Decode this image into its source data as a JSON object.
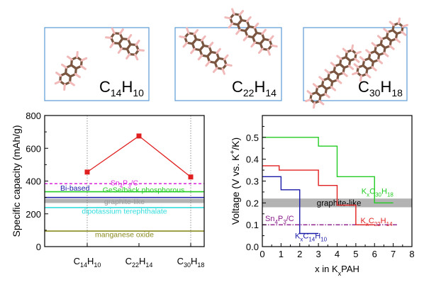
{
  "molecules": [
    {
      "label": "C",
      "sub1": "14",
      "mid": "H",
      "sub2": "10"
    },
    {
      "label": "C",
      "sub1": "22",
      "mid": "H",
      "sub2": "14"
    },
    {
      "label": "C",
      "sub1": "30",
      "mid": "H",
      "sub2": "18"
    }
  ],
  "colors": {
    "frame": "#5b9bd5",
    "bond": "#7a5540",
    "hydrogen": "#f2b9b9",
    "red": "#e02020",
    "green": "#22cc22",
    "blue": "#1a1aa8",
    "purple": "#8a1a8a",
    "band": "#b3b3b3"
  },
  "chart_data": [
    {
      "type": "line",
      "ylabel": "Specific capacity (mAh/g)",
      "ylim": [
        0,
        800
      ],
      "yticks": [
        "0",
        "200",
        "400",
        "600",
        "800"
      ],
      "categories": [
        {
          "main": "C",
          "sub1": "14",
          "mid": "H",
          "sub2": "10"
        },
        {
          "main": "C",
          "sub1": "22",
          "mid": "H",
          "sub2": "14"
        },
        {
          "main": "C",
          "sub1": "30",
          "mid": "H",
          "sub2": "18"
        }
      ],
      "series": [
        {
          "values": [
            455,
            675,
            425
          ],
          "color": "#e02020"
        }
      ],
      "reference_lines": [
        {
          "label": "Sn4P3/C",
          "parts": [
            [
              "Sn",
              ""
            ],
            [
              "4",
              "sub"
            ],
            [
              "P",
              ""
            ],
            [
              "3",
              "sub"
            ],
            [
              "/C",
              ""
            ]
          ],
          "value": 384,
          "color": "#dd33dd",
          "dash": "4,3",
          "label_y": 392,
          "label_x": 0.5
        },
        {
          "label": "GeSe/back phosphorous",
          "parts": [
            [
              "GeSe/back phosphorous",
              ""
            ]
          ],
          "value": 335,
          "color": "#22cc22",
          "dash": "",
          "label_y": 348,
          "label_x": 0.62
        },
        {
          "label": "Bi-based",
          "parts": [
            [
              "Bi-based",
              ""
            ]
          ],
          "value": 300,
          "color": "#1a1aa8",
          "dash": "",
          "label_y": 360,
          "label_x": 0.12
        },
        {
          "label": "graphite-like",
          "parts": [
            [
              "graphite-like",
              ""
            ]
          ],
          "value": 279,
          "color": "#808080",
          "dash": "",
          "label_y": 276,
          "label_x": 0.5
        },
        {
          "label": "dipotassium terephthalate",
          "parts": [
            [
              "dipotassium terephthalate",
              ""
            ]
          ],
          "value": 238,
          "color": "#33dddd",
          "dash": "",
          "label_y": 218,
          "label_x": 0.5
        },
        {
          "label": "manganese oxide",
          "parts": [
            [
              "manganese oxide",
              ""
            ]
          ],
          "value": 95,
          "color": "#8a8a20",
          "dash": "",
          "label_y": 76,
          "label_x": 0.5
        }
      ]
    },
    {
      "type": "line",
      "xlabel_parts": [
        [
          "x in K",
          ""
        ],
        [
          "x",
          "sub"
        ],
        [
          "PAH",
          ""
        ]
      ],
      "ylabel_parts": [
        [
          "Voltage (V vs. K",
          ""
        ],
        [
          "+",
          "sup"
        ],
        [
          "/K)",
          ""
        ]
      ],
      "xlim": [
        0,
        8
      ],
      "ylim": [
        0,
        0.6
      ],
      "xticks": [
        "0",
        "1",
        "2",
        "3",
        "4",
        "5",
        "6",
        "7",
        "8"
      ],
      "yticks": [
        "0.0",
        "0.1",
        "0.2",
        "0.3",
        "0.4",
        "0.5"
      ],
      "band": {
        "label": "graphite-like",
        "range": [
          0.18,
          0.22
        ],
        "color": "#b3b3b3"
      },
      "reference_line": {
        "label": "Sn4P3/C",
        "parts": [
          [
            "Sn",
            ""
          ],
          [
            "4",
            "sub"
          ],
          [
            "P",
            ""
          ],
          [
            "3",
            "sub"
          ],
          [
            "/C",
            ""
          ]
        ],
        "value": 0.1,
        "color": "#8a1a8a"
      },
      "series": [
        {
          "name": "KxC30H18",
          "parts": [
            [
              "K",
              ""
            ],
            [
              "x",
              "sub"
            ],
            [
              "C",
              ""
            ],
            [
              "30",
              "sub"
            ],
            [
              "H",
              ""
            ],
            [
              "18",
              "sub"
            ]
          ],
          "color": "#22cc22",
          "x": [
            0,
            3,
            3,
            4,
            4,
            6,
            6,
            7
          ],
          "y": [
            0.5,
            0.5,
            0.46,
            0.46,
            0.32,
            0.32,
            0.2,
            0.2
          ]
        },
        {
          "name": "KxC22H14",
          "parts": [
            [
              "K",
              ""
            ],
            [
              "x",
              "sub"
            ],
            [
              "C",
              ""
            ],
            [
              "22",
              "sub"
            ],
            [
              "H",
              ""
            ],
            [
              "14",
              "sub"
            ]
          ],
          "color": "#e02020",
          "x": [
            0,
            0.9,
            0.9,
            3,
            3,
            4,
            4,
            5,
            5,
            6
          ],
          "y": [
            0.37,
            0.37,
            0.35,
            0.35,
            0.28,
            0.28,
            0.19,
            0.19,
            0.1,
            0.1
          ]
        },
        {
          "name": "KxC14H10",
          "parts": [
            [
              "K",
              ""
            ],
            [
              "x",
              "sub"
            ],
            [
              "C",
              ""
            ],
            [
              "14",
              "sub"
            ],
            [
              "H",
              ""
            ],
            [
              "10",
              "sub"
            ]
          ],
          "color": "#1a1aa8",
          "x": [
            0,
            1,
            1,
            2,
            2,
            3
          ],
          "y": [
            0.32,
            0.32,
            0.26,
            0.26,
            0.06,
            0.06
          ]
        }
      ]
    }
  ]
}
